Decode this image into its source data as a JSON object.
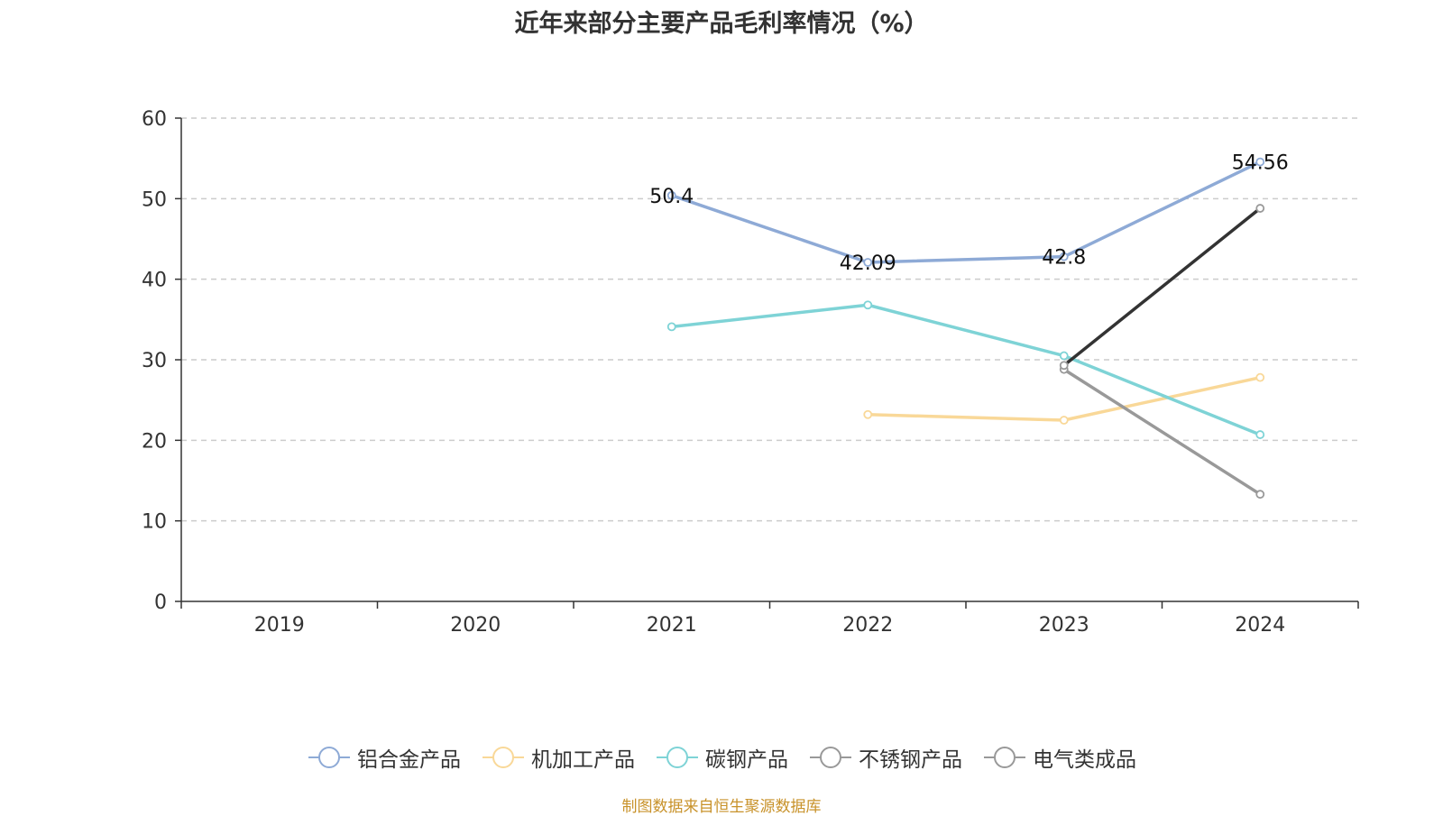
{
  "title": "近年来部分主要产品毛利率情况（%）",
  "source": "制图数据来自恒生聚源数据库",
  "chart_data": {
    "type": "line",
    "title": "近年来部分主要产品毛利率情况（%）",
    "categories": [
      "2019",
      "2020",
      "2021",
      "2022",
      "2023",
      "2024"
    ],
    "ylim": [
      0,
      60
    ],
    "yticks": [
      0,
      10,
      20,
      30,
      40,
      50,
      60
    ],
    "grid": true,
    "legend_position": "bottom",
    "series": [
      {
        "name": "铝合金产品",
        "color": "#8eaad6",
        "values": [
          null,
          null,
          50.4,
          42.09,
          42.8,
          54.56
        ],
        "labels": [
          null,
          null,
          "50.4",
          "42.09",
          "42.8",
          "54.56"
        ]
      },
      {
        "name": "机加工产品",
        "color": "#f9d898",
        "values": [
          null,
          null,
          null,
          23.2,
          22.5,
          27.8
        ]
      },
      {
        "name": "碳钢产品",
        "color": "#7ed3d6",
        "values": [
          null,
          null,
          34.1,
          36.8,
          30.5,
          20.7
        ]
      },
      {
        "name": "不锈钢产品",
        "color": "#999999",
        "values": [
          null,
          null,
          null,
          null,
          28.8,
          13.3
        ]
      },
      {
        "name": "电气类成品",
        "color": "#333333",
        "marker_color": "#999999",
        "values": [
          null,
          null,
          null,
          null,
          29.3,
          48.8
        ]
      }
    ]
  }
}
